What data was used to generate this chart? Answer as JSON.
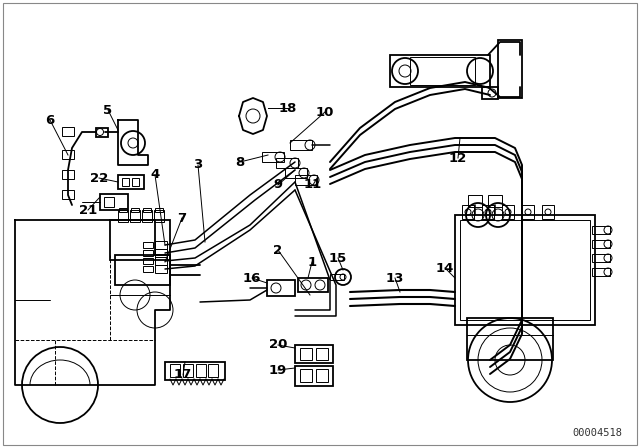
{
  "bg_color": "#ffffff",
  "line_color": "#000000",
  "text_color": "#000000",
  "diagram_code": "00004518",
  "lw": 1.3,
  "plw": 1.1,
  "tlw": 0.7,
  "fs": 9.5
}
